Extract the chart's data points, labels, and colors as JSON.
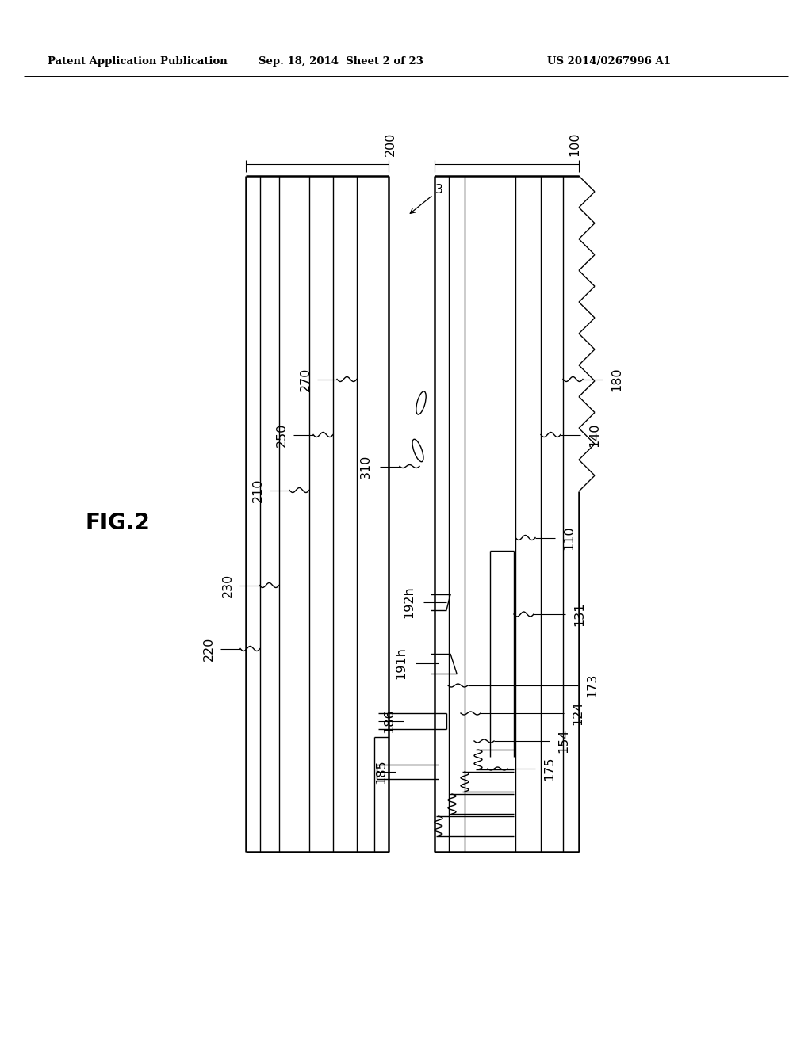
{
  "bg_color": "#ffffff",
  "text_color": "#000000",
  "header_left": "Patent Application Publication",
  "header_center": "Sep. 18, 2014  Sheet 2 of 23",
  "header_right": "US 2014/0267996 A1",
  "fig_label": "FIG.2",
  "lc": "#000000",
  "lw": 1.0,
  "tlw": 1.8
}
